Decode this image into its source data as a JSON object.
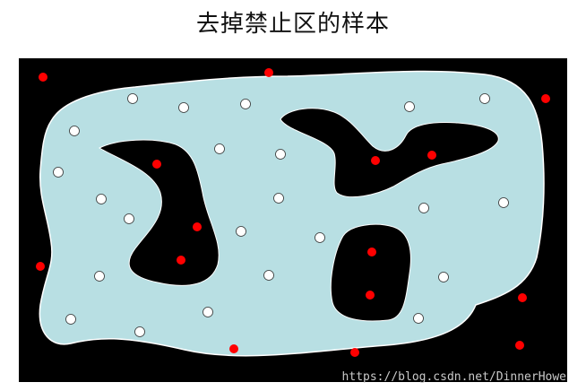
{
  "title": "去掉禁止区的样本",
  "watermark": "https://blog.csdn.net/DinnerHowe",
  "colors": {
    "background": "#000000",
    "region": "#b8dfe3",
    "allowed_point": "#ffffff",
    "forbidden_point": "#ff0000"
  },
  "diagram": {
    "allowed_sample_count": 32,
    "forbidden_sample_count": 16
  }
}
